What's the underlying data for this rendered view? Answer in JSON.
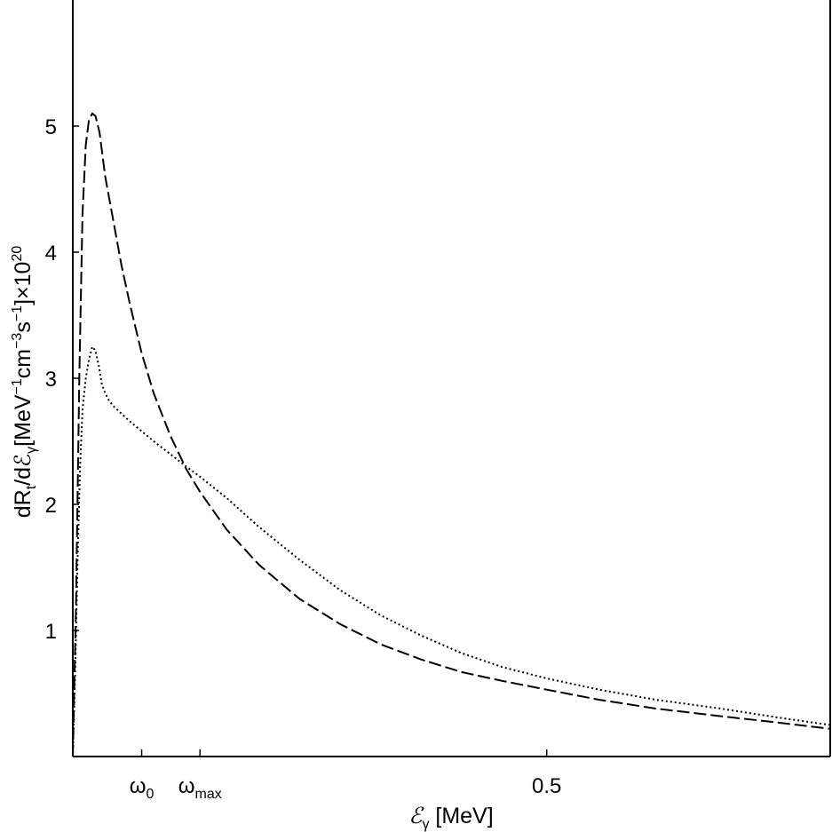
{
  "chart_data": {
    "type": "line",
    "title": "",
    "xlabel": "ℰγ [MeV]",
    "ylabel": "dRt/dℰγ[MeV−1cm−3s−1]×1020",
    "xlim": [
      0.0,
      0.935
    ],
    "ylim": [
      0.0,
      6.0
    ],
    "grid": false,
    "x_ticks": [
      {
        "value": 0.085,
        "label": "ω",
        "sub": "0"
      },
      {
        "value": 0.157,
        "label": "ω",
        "sub": "max"
      },
      {
        "value": 0.585,
        "label": "0.5",
        "sub": ""
      }
    ],
    "y_ticks": [
      {
        "value": 1,
        "label": "1"
      },
      {
        "value": 2,
        "label": "2"
      },
      {
        "value": 3,
        "label": "3"
      },
      {
        "value": 4,
        "label": "4"
      },
      {
        "value": 5,
        "label": "5"
      }
    ],
    "series": [
      {
        "style": "dashed",
        "x": [
          0.0,
          0.004,
          0.008,
          0.012,
          0.016,
          0.02,
          0.024,
          0.028,
          0.033,
          0.04,
          0.05,
          0.06,
          0.07,
          0.085,
          0.1,
          0.12,
          0.14,
          0.157,
          0.19,
          0.23,
          0.28,
          0.33,
          0.38,
          0.43,
          0.48,
          0.53,
          0.585,
          0.65,
          0.72,
          0.8,
          0.87,
          0.935
        ],
        "y": [
          0.0,
          1.2,
          3.0,
          4.3,
          4.85,
          5.05,
          5.1,
          5.08,
          4.95,
          4.6,
          4.25,
          3.9,
          3.6,
          3.2,
          2.88,
          2.55,
          2.28,
          2.1,
          1.8,
          1.52,
          1.25,
          1.05,
          0.89,
          0.77,
          0.67,
          0.6,
          0.53,
          0.45,
          0.38,
          0.32,
          0.27,
          0.22
        ]
      },
      {
        "style": "dotted",
        "x": [
          0.0,
          0.003,
          0.006,
          0.009,
          0.012,
          0.016,
          0.02,
          0.024,
          0.028,
          0.032,
          0.036,
          0.04,
          0.045,
          0.05,
          0.06,
          0.07,
          0.085,
          0.1,
          0.12,
          0.14,
          0.157,
          0.19,
          0.23,
          0.28,
          0.33,
          0.38,
          0.43,
          0.48,
          0.53,
          0.585,
          0.65,
          0.72,
          0.8,
          0.87,
          0.935
        ],
        "y": [
          0.0,
          0.7,
          1.6,
          2.3,
          2.75,
          3.0,
          3.15,
          3.25,
          3.22,
          3.1,
          2.95,
          2.88,
          2.82,
          2.78,
          2.72,
          2.66,
          2.58,
          2.5,
          2.4,
          2.3,
          2.22,
          2.05,
          1.82,
          1.56,
          1.32,
          1.12,
          0.96,
          0.82,
          0.71,
          0.62,
          0.53,
          0.45,
          0.38,
          0.31,
          0.25
        ]
      }
    ]
  }
}
